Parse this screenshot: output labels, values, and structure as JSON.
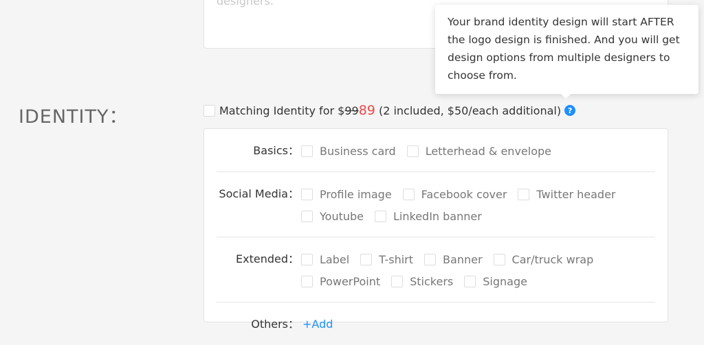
{
  "textarea": {
    "placeholder_tail": "designers."
  },
  "tooltip": {
    "text": "Your brand identity design will start AFTER the logo design is finished. And you will get design options from multiple designers to choose from."
  },
  "section": {
    "label": "IDENTITY："
  },
  "matching": {
    "prefix": "Matching Identity for $",
    "old_price": "99",
    "new_price": "89",
    "suffix": " (2 included, $50/each additional)",
    "help_icon": "?"
  },
  "rows": [
    {
      "label": "Basics：",
      "options": [
        "Business card",
        "Letterhead & envelope"
      ]
    },
    {
      "label": "Social Media：",
      "options": [
        "Profile image",
        "Facebook cover",
        "Twitter header",
        "Youtube",
        "LinkedIn banner"
      ]
    },
    {
      "label": "Extended：",
      "options": [
        "Label",
        "T-shirt",
        "Banner",
        "Car/truck wrap",
        "PowerPoint",
        "Stickers",
        "Signage"
      ]
    },
    {
      "label": "Others：",
      "add_label": "+Add"
    }
  ],
  "colors": {
    "accent": "#1e90ff",
    "price": "#f04848",
    "background": "#f5f5f5"
  }
}
